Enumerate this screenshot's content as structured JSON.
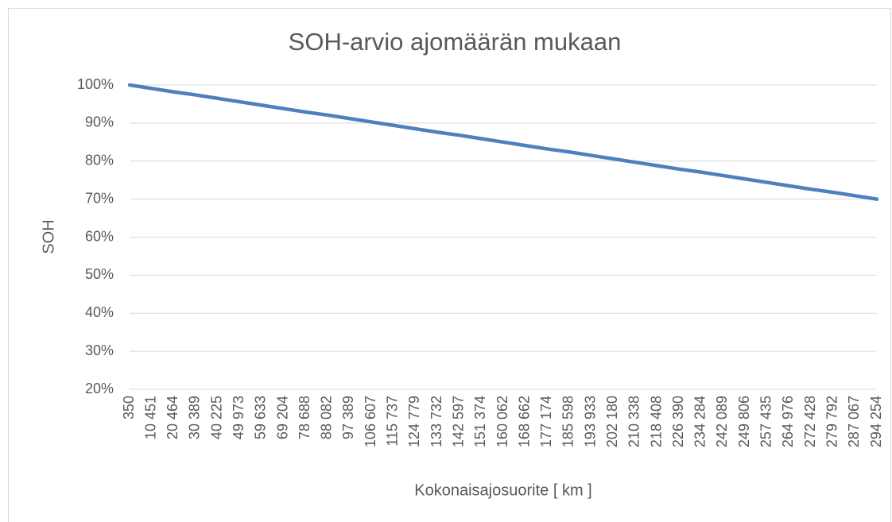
{
  "chart_data": {
    "type": "line",
    "title": "SOH-arvio ajomäärän mukaan",
    "x_label": "Kokonaisajosuorite [ km ]",
    "y_label": "SOH",
    "categories": [
      "350",
      "10 451",
      "20 464",
      "30 389",
      "40 225",
      "49 973",
      "59 633",
      "69 204",
      "78 688",
      "88 082",
      "97 389",
      "106 607",
      "115 737",
      "124 779",
      "133 732",
      "142 597",
      "151 374",
      "160 062",
      "168 662",
      "177 174",
      "185 598",
      "193 933",
      "202 180",
      "210 338",
      "218 408",
      "226 390",
      "234 284",
      "242 089",
      "249 806",
      "257 435",
      "264 976",
      "272 428",
      "279 792",
      "287 067",
      "294 254"
    ],
    "values": [
      100,
      99.1,
      98.2,
      97.4,
      96.5,
      95.6,
      94.7,
      93.8,
      92.9,
      92.1,
      91.2,
      90.3,
      89.4,
      88.5,
      87.6,
      86.8,
      85.9,
      85.0,
      84.1,
      83.2,
      82.4,
      81.5,
      80.6,
      79.7,
      78.8,
      77.9,
      77.1,
      76.2,
      75.3,
      74.4,
      73.5,
      72.6,
      71.8,
      70.9,
      70.0
    ],
    "color": "#4f7fbf",
    "ylim": [
      20,
      100
    ],
    "yticks": [
      {
        "value": 20,
        "label": "20%"
      },
      {
        "value": 30,
        "label": "30%"
      },
      {
        "value": 40,
        "label": "40%"
      },
      {
        "value": 50,
        "label": "50%"
      },
      {
        "value": 60,
        "label": "60%"
      },
      {
        "value": 70,
        "label": "70%"
      },
      {
        "value": 80,
        "label": "80%"
      },
      {
        "value": 90,
        "label": "90%"
      },
      {
        "value": 100,
        "label": "100%"
      }
    ],
    "grid": true
  }
}
